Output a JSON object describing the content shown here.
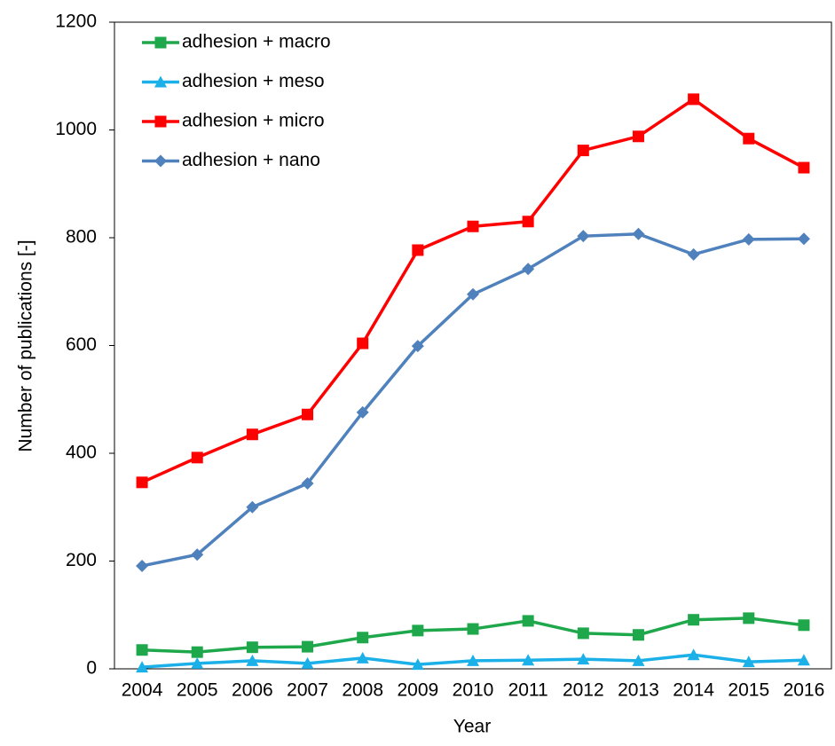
{
  "chart_data": {
    "type": "line",
    "x_label": "Year",
    "y_label": "Number of publications  [-]",
    "categories": [
      "2004",
      "2005",
      "2006",
      "2007",
      "2008",
      "2009",
      "2010",
      "2011",
      "2012",
      "2013",
      "2014",
      "2015",
      "2016"
    ],
    "series": [
      {
        "name": "adhesion + macro",
        "color": "#1ea84b",
        "marker": "square",
        "values": [
          35,
          31,
          40,
          41,
          58,
          71,
          74,
          89,
          66,
          63,
          91,
          94,
          81
        ]
      },
      {
        "name": "adhesion + meso",
        "color": "#1cb0e9",
        "marker": "triangle",
        "values": [
          3,
          10,
          15,
          10,
          20,
          8,
          15,
          16,
          18,
          15,
          26,
          13,
          16
        ]
      },
      {
        "name": "adhesion + micro",
        "color": "#ff0000",
        "marker": "square",
        "values": [
          346,
          392,
          435,
          472,
          604,
          777,
          821,
          830,
          962,
          988,
          1057,
          984,
          930
        ]
      },
      {
        "name": "adhesion + nano",
        "color": "#4f81bd",
        "marker": "diamond",
        "values": [
          191,
          212,
          300,
          344,
          476,
          599,
          695,
          742,
          803,
          807,
          769,
          797,
          798
        ]
      }
    ],
    "ylim": [
      0,
      1200
    ],
    "yticks": [
      0,
      200,
      400,
      600,
      800,
      1000,
      1200
    ],
    "grid": false,
    "legend": "upper left"
  }
}
